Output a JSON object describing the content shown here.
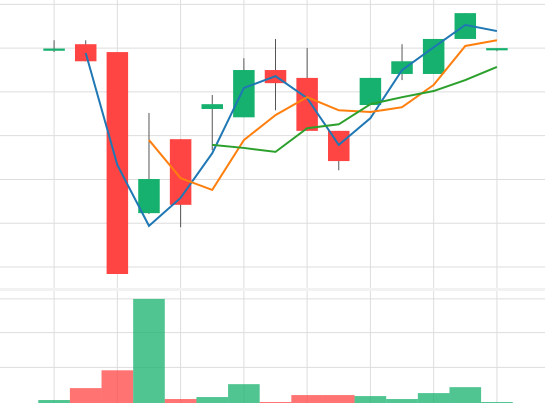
{
  "chart_data": {
    "type": "candlestick",
    "x": [
      0,
      1,
      2,
      3,
      4,
      5,
      6,
      7,
      8,
      9,
      10,
      11,
      12,
      13,
      14
    ],
    "open": [
      59.4,
      60.9,
      59.1,
      22.3,
      39.2,
      46.1,
      44.2,
      55.0,
      53.2,
      41.1,
      47.0,
      54.1,
      54.1,
      62.1,
      59.5
    ],
    "high": [
      61.8,
      61.8,
      59.1,
      45.2,
      39.2,
      49.3,
      57.7,
      62.1,
      60.0,
      41.1,
      53.2,
      60.9,
      62.1,
      68.0,
      60.0
    ],
    "low": [
      59.1,
      57.0,
      8.4,
      22.1,
      19.1,
      36.7,
      44.2,
      45.8,
      41.1,
      32.1,
      47.0,
      52.7,
      54.1,
      62.1,
      59.3
    ],
    "close": [
      59.9,
      57.0,
      8.4,
      30.1,
      24.2,
      47.2,
      55.0,
      52.0,
      41.1,
      34.2,
      53.2,
      57.0,
      62.1,
      68.0,
      60.0
    ],
    "up_color": "#16b16e",
    "down_color": "#ff4444",
    "lines": [
      {
        "color": "#1f77b4",
        "values": [
          null,
          58.9,
          33.3,
          19.4,
          25.8,
          36.0,
          50.9,
          53.6,
          48.6,
          37.9,
          44.0,
          55.0,
          60.2,
          65.3,
          63.9
        ]
      },
      {
        "color": "#ff7f0e",
        "values": [
          null,
          null,
          null,
          39.0,
          30.3,
          27.6,
          39.0,
          44.7,
          48.8,
          45.8,
          45.4,
          46.5,
          51.6,
          60.5,
          61.8
        ]
      },
      {
        "color": "#2ca02c",
        "values": [
          null,
          null,
          null,
          null,
          null,
          37.9,
          37.2,
          36.3,
          41.7,
          42.6,
          47.2,
          48.8,
          50.2,
          52.7,
          55.7
        ]
      }
    ],
    "volume": [
      3,
      15,
      33,
      105,
      4,
      6,
      19,
      1,
      8,
      8,
      7,
      4,
      10,
      16,
      1
    ],
    "xlim": [
      -1.71,
      15.52
    ],
    "xticks": [
      0,
      2,
      4,
      6,
      8,
      10,
      12,
      14
    ],
    "ylim": [
      5.2,
      71
    ],
    "yticks": [
      10,
      20,
      30,
      40,
      50,
      60,
      70
    ],
    "volume_ylim": [
      0,
      113
    ],
    "volume_ticks": [
      36,
      71,
      105
    ],
    "grid": true
  }
}
